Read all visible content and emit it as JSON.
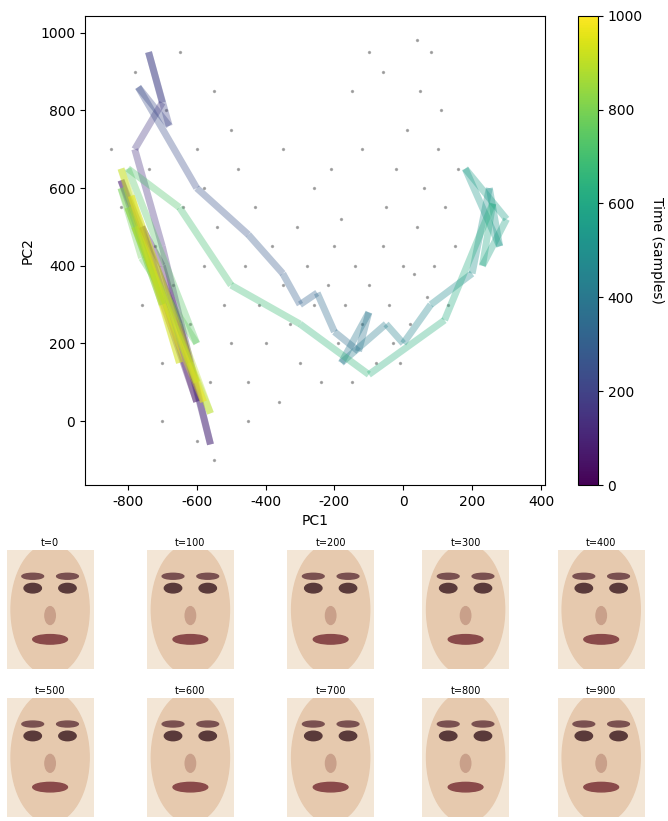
{
  "chart_data": {
    "type": "scatter",
    "x_label": "PC1",
    "y_label": "PC2",
    "xlim": [
      -925,
      412
    ],
    "ylim": [
      -165,
      1044
    ],
    "xticks": [
      -800,
      -600,
      -400,
      -200,
      0,
      200,
      400
    ],
    "yticks": [
      0,
      200,
      400,
      600,
      800,
      1000
    ],
    "points": {
      "color": "#808080",
      "x": [
        -850,
        -820,
        -780,
        -760,
        -740,
        -720,
        -700,
        -690,
        -670,
        -650,
        -640,
        -620,
        -600,
        -580,
        -560,
        -550,
        -540,
        -520,
        -500,
        -480,
        -460,
        -450,
        -430,
        -420,
        -400,
        -380,
        -360,
        -350,
        -330,
        -310,
        -300,
        -280,
        -260,
        -240,
        -220,
        -200,
        -190,
        -170,
        -150,
        -140,
        -120,
        -100,
        -80,
        -60,
        -50,
        -40,
        -20,
        0,
        10,
        20,
        40,
        50,
        60,
        80,
        90,
        100,
        110,
        120,
        130,
        -100,
        -150,
        -60,
        -210,
        -120,
        40,
        150,
        160,
        -500,
        -580,
        -350,
        -260,
        -180,
        -30,
        -10,
        30,
        70,
        -700,
        -600,
        -550,
        -450
      ],
      "y": [
        700,
        550,
        900,
        300,
        650,
        450,
        150,
        800,
        350,
        950,
        550,
        250,
        700,
        400,
        100,
        850,
        500,
        300,
        200,
        650,
        400,
        100,
        550,
        300,
        200,
        450,
        50,
        350,
        250,
        500,
        150,
        400,
        300,
        100,
        350,
        450,
        200,
        300,
        100,
        400,
        250,
        350,
        150,
        450,
        550,
        300,
        650,
        400,
        750,
        250,
        500,
        850,
        600,
        950,
        400,
        700,
        800,
        550,
        300,
        950,
        850,
        900,
        650,
        700,
        980,
        450,
        650,
        750,
        600,
        700,
        600,
        520,
        200,
        150,
        380,
        320,
        0,
        -50,
        -100,
        0
      ]
    },
    "trajectory": {
      "x": [
        -620,
        -700,
        -760,
        -600,
        -820,
        -650,
        -560,
        -700,
        -780,
        -700,
        -740,
        -680,
        -770,
        -600,
        -450,
        -350,
        -300,
        -250,
        -200,
        -130,
        -100,
        -180,
        -50,
        0,
        80,
        200,
        250,
        280,
        180,
        300,
        230,
        260,
        120,
        -100,
        -300,
        -500,
        -650,
        -800,
        -600,
        -760,
        -820,
        -700,
        -800,
        -600,
        -780,
        -560,
        -820,
        -650,
        -790,
        -580,
        -700
      ],
      "y": [
        150,
        400,
        500,
        50,
        620,
        250,
        -60,
        450,
        700,
        820,
        950,
        760,
        860,
        600,
        480,
        380,
        300,
        330,
        230,
        180,
        280,
        150,
        250,
        200,
        300,
        380,
        600,
        450,
        650,
        520,
        400,
        560,
        260,
        120,
        250,
        350,
        550,
        650,
        200,
        420,
        600,
        300,
        550,
        100,
        500,
        20,
        650,
        150,
        580,
        50,
        300
      ],
      "time": [
        0,
        20,
        40,
        60,
        80,
        100,
        120,
        140,
        160,
        180,
        200,
        220,
        240,
        260,
        280,
        300,
        320,
        340,
        360,
        380,
        400,
        420,
        440,
        460,
        480,
        500,
        520,
        540,
        560,
        580,
        600,
        620,
        640,
        660,
        680,
        700,
        720,
        740,
        760,
        780,
        800,
        820,
        840,
        860,
        880,
        900,
        920,
        940,
        960,
        980,
        1000
      ]
    },
    "colorbar": {
      "label": "Time (samples)",
      "lim": [
        0,
        1000
      ],
      "ticks": [
        0,
        200,
        400,
        600,
        800,
        1000
      ]
    }
  },
  "image_panels": {
    "titles": [
      "t=0",
      "t=100",
      "t=200",
      "t=300",
      "t=400",
      "t=500",
      "t=600",
      "t=700",
      "t=800",
      "t=900"
    ]
  }
}
